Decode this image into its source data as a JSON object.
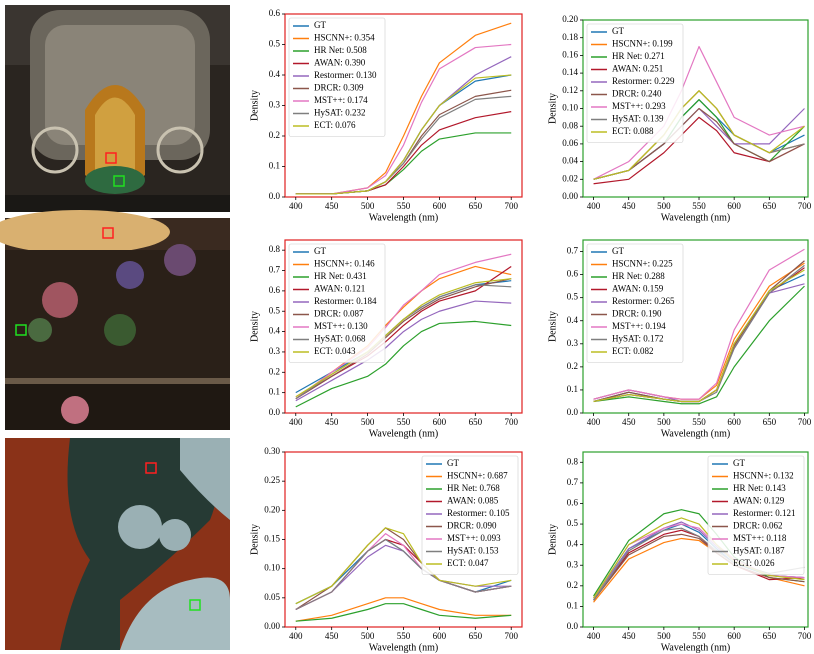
{
  "chart_data": [
    {
      "type": "line",
      "xlabel": "Wavelength (nm)",
      "ylabel": "Density",
      "legend": "upper left",
      "frame_color": "#e02020",
      "x": [
        400,
        450,
        500,
        525,
        550,
        575,
        600,
        650,
        700
      ],
      "xlim": [
        385,
        715
      ],
      "xticks": [
        400,
        450,
        500,
        550,
        600,
        650,
        700
      ],
      "ylim": [
        0,
        0.6
      ],
      "yticks": [
        {
          "value": 0,
          "label": "0.0"
        },
        0.1,
        0.2,
        0.3,
        0.4,
        0.5,
        0.6
      ],
      "series": [
        {
          "name": "GT",
          "color": "#1f77b4",
          "values": [
            0.01,
            0.01,
            0.02,
            0.05,
            0.12,
            0.22,
            0.3,
            0.38,
            0.4
          ]
        },
        {
          "name": "HSCNN+: 0.354",
          "color": "#ff7f0e",
          "values": [
            0.01,
            0.01,
            0.03,
            0.08,
            0.2,
            0.33,
            0.44,
            0.53,
            0.57
          ]
        },
        {
          "name": "HR Net: 0.508",
          "color": "#2ca02c",
          "values": [
            0.01,
            0.01,
            0.02,
            0.04,
            0.09,
            0.15,
            0.19,
            0.21,
            0.21
          ]
        },
        {
          "name": "AWAN: 0.390",
          "color": "#b2182b",
          "values": [
            0.01,
            0.01,
            0.02,
            0.04,
            0.1,
            0.17,
            0.22,
            0.26,
            0.28
          ]
        },
        {
          "name": "Restormer: 0.130",
          "color": "#9467bd",
          "values": [
            0.01,
            0.01,
            0.02,
            0.05,
            0.12,
            0.22,
            0.3,
            0.4,
            0.46
          ]
        },
        {
          "name": "DRCR: 0.309",
          "color": "#8c564b",
          "values": [
            0.01,
            0.01,
            0.02,
            0.05,
            0.11,
            0.2,
            0.27,
            0.33,
            0.35
          ]
        },
        {
          "name": "MST++: 0.174",
          "color": "#e377c2",
          "values": [
            0.01,
            0.01,
            0.03,
            0.07,
            0.17,
            0.31,
            0.42,
            0.49,
            0.5
          ]
        },
        {
          "name": "HySAT: 0.232",
          "color": "#7f7f7f",
          "values": [
            0.01,
            0.01,
            0.02,
            0.05,
            0.11,
            0.19,
            0.26,
            0.32,
            0.33
          ]
        },
        {
          "name": "ECT: 0.076",
          "color": "#bcbd22",
          "values": [
            0.01,
            0.01,
            0.02,
            0.05,
            0.12,
            0.22,
            0.3,
            0.39,
            0.4
          ]
        }
      ]
    },
    {
      "type": "line",
      "xlabel": "Wavelength (nm)",
      "ylabel": "Density",
      "legend": "upper left",
      "frame_color": "#2ca02c",
      "x": [
        400,
        450,
        500,
        525,
        550,
        575,
        600,
        650,
        700
      ],
      "xlim": [
        385,
        705
      ],
      "xticks": [
        400,
        450,
        500,
        550,
        600,
        650,
        700
      ],
      "ylim": [
        0,
        0.2
      ],
      "yticks": [
        {
          "value": 0,
          "label": "0.00"
        },
        0.02,
        0.04,
        0.06,
        0.08,
        {
          "value": 0.1,
          "label": "0.10"
        },
        0.12,
        0.14,
        0.16,
        0.18,
        {
          "value": 0.2,
          "label": "0.20"
        }
      ],
      "series": [
        {
          "name": "GT",
          "color": "#1f77b4",
          "values": [
            0.02,
            0.03,
            0.06,
            0.09,
            0.11,
            0.09,
            0.07,
            0.05,
            0.07
          ]
        },
        {
          "name": "HSCNN+: 0.199",
          "color": "#ff7f0e",
          "values": [
            0.02,
            0.03,
            0.07,
            0.1,
            0.12,
            0.1,
            0.07,
            0.05,
            0.06
          ]
        },
        {
          "name": "HR Net: 0.271",
          "color": "#2ca02c",
          "values": [
            0.02,
            0.03,
            0.06,
            0.09,
            0.11,
            0.09,
            0.06,
            0.04,
            0.08
          ]
        },
        {
          "name": "AWAN: 0.251",
          "color": "#b2182b",
          "values": [
            0.015,
            0.02,
            0.05,
            0.07,
            0.09,
            0.075,
            0.05,
            0.04,
            0.06
          ]
        },
        {
          "name": "Restormer: 0.229",
          "color": "#9467bd",
          "values": [
            0.02,
            0.03,
            0.06,
            0.08,
            0.1,
            0.08,
            0.06,
            0.06,
            0.1
          ]
        },
        {
          "name": "DRCR: 0.240",
          "color": "#8c564b",
          "values": [
            0.02,
            0.03,
            0.06,
            0.08,
            0.1,
            0.085,
            0.06,
            0.04,
            0.06
          ]
        },
        {
          "name": "MST++: 0.293",
          "color": "#e377c2",
          "values": [
            0.02,
            0.04,
            0.08,
            0.12,
            0.17,
            0.13,
            0.09,
            0.07,
            0.08
          ]
        },
        {
          "name": "HySAT: 0.139",
          "color": "#7f7f7f",
          "values": [
            0.02,
            0.03,
            0.07,
            0.1,
            0.12,
            0.1,
            0.07,
            0.05,
            0.06
          ]
        },
        {
          "name": "ECT: 0.088",
          "color": "#bcbd22",
          "values": [
            0.02,
            0.03,
            0.07,
            0.1,
            0.12,
            0.1,
            0.07,
            0.05,
            0.08
          ]
        }
      ]
    },
    {
      "type": "line",
      "xlabel": "Wavelength (nm)",
      "ylabel": "Density",
      "legend": "upper left",
      "frame_color": "#e02020",
      "x": [
        400,
        450,
        500,
        525,
        550,
        575,
        600,
        650,
        700
      ],
      "xlim": [
        385,
        715
      ],
      "xticks": [
        400,
        450,
        500,
        550,
        600,
        650,
        700
      ],
      "ylim": [
        0,
        0.85
      ],
      "yticks": [
        {
          "value": 0,
          "label": "0.0"
        },
        0.1,
        0.2,
        0.3,
        0.4,
        0.5,
        0.6,
        0.7,
        0.8
      ],
      "series": [
        {
          "name": "GT",
          "color": "#1f77b4",
          "values": [
            0.1,
            0.2,
            0.3,
            0.38,
            0.46,
            0.52,
            0.57,
            0.63,
            0.65
          ]
        },
        {
          "name": "HSCNN+: 0.146",
          "color": "#ff7f0e",
          "values": [
            0.07,
            0.2,
            0.33,
            0.43,
            0.52,
            0.6,
            0.66,
            0.72,
            0.68
          ]
        },
        {
          "name": "HR Net: 0.431",
          "color": "#2ca02c",
          "values": [
            0.03,
            0.12,
            0.18,
            0.24,
            0.33,
            0.4,
            0.44,
            0.45,
            0.43
          ]
        },
        {
          "name": "AWAN: 0.121",
          "color": "#b2182b",
          "values": [
            0.07,
            0.18,
            0.28,
            0.35,
            0.43,
            0.5,
            0.55,
            0.6,
            0.72
          ]
        },
        {
          "name": "Restormer: 0.184",
          "color": "#9467bd",
          "values": [
            0.06,
            0.16,
            0.26,
            0.32,
            0.4,
            0.46,
            0.5,
            0.55,
            0.54
          ]
        },
        {
          "name": "DRCR: 0.087",
          "color": "#8c564b",
          "values": [
            0.07,
            0.18,
            0.29,
            0.37,
            0.45,
            0.51,
            0.56,
            0.62,
            0.66
          ]
        },
        {
          "name": "MST++: 0.130",
          "color": "#e377c2",
          "values": [
            0.07,
            0.2,
            0.32,
            0.42,
            0.53,
            0.6,
            0.68,
            0.74,
            0.78
          ]
        },
        {
          "name": "HySAT: 0.068",
          "color": "#7f7f7f",
          "values": [
            0.07,
            0.19,
            0.3,
            0.38,
            0.46,
            0.52,
            0.57,
            0.63,
            0.62
          ]
        },
        {
          "name": "ECT: 0.043",
          "color": "#bcbd22",
          "values": [
            0.08,
            0.19,
            0.3,
            0.38,
            0.46,
            0.53,
            0.58,
            0.64,
            0.66
          ]
        }
      ]
    },
    {
      "type": "line",
      "xlabel": "Wavelength (nm)",
      "ylabel": "Density",
      "legend": "upper left",
      "frame_color": "#2ca02c",
      "x": [
        400,
        450,
        500,
        525,
        550,
        575,
        600,
        650,
        700
      ],
      "xlim": [
        385,
        705
      ],
      "xticks": [
        400,
        450,
        500,
        550,
        600,
        650,
        700
      ],
      "ylim": [
        0,
        0.75
      ],
      "yticks": [
        {
          "value": 0,
          "label": "0.0"
        },
        0.1,
        0.2,
        0.3,
        0.4,
        0.5,
        0.6,
        0.7
      ],
      "series": [
        {
          "name": "GT",
          "color": "#1f77b4",
          "values": [
            0.05,
            0.09,
            0.06,
            0.05,
            0.05,
            0.1,
            0.3,
            0.53,
            0.6
          ]
        },
        {
          "name": "HSCNN+: 0.225",
          "color": "#ff7f0e",
          "values": [
            0.06,
            0.1,
            0.07,
            0.06,
            0.06,
            0.12,
            0.32,
            0.55,
            0.65
          ]
        },
        {
          "name": "HR Net: 0.288",
          "color": "#2ca02c",
          "values": [
            0.05,
            0.07,
            0.05,
            0.04,
            0.04,
            0.07,
            0.2,
            0.4,
            0.55
          ]
        },
        {
          "name": "AWAN: 0.159",
          "color": "#b2182b",
          "values": [
            0.05,
            0.08,
            0.06,
            0.05,
            0.05,
            0.1,
            0.3,
            0.52,
            0.63
          ]
        },
        {
          "name": "Restormer: 0.265",
          "color": "#9467bd",
          "values": [
            0.06,
            0.1,
            0.07,
            0.05,
            0.05,
            0.1,
            0.28,
            0.52,
            0.56
          ]
        },
        {
          "name": "DRCR: 0.190",
          "color": "#8c564b",
          "values": [
            0.05,
            0.09,
            0.06,
            0.05,
            0.05,
            0.1,
            0.29,
            0.53,
            0.66
          ]
        },
        {
          "name": "MST++: 0.194",
          "color": "#e377c2",
          "values": [
            0.06,
            0.1,
            0.07,
            0.06,
            0.06,
            0.13,
            0.36,
            0.62,
            0.71
          ]
        },
        {
          "name": "HySAT: 0.172",
          "color": "#7f7f7f",
          "values": [
            0.05,
            0.08,
            0.06,
            0.05,
            0.05,
            0.09,
            0.28,
            0.52,
            0.64
          ]
        },
        {
          "name": "ECT: 0.082",
          "color": "#bcbd22",
          "values": [
            0.05,
            0.08,
            0.06,
            0.05,
            0.05,
            0.1,
            0.3,
            0.53,
            0.62
          ]
        }
      ]
    },
    {
      "type": "line",
      "xlabel": "Wavelength (nm)",
      "ylabel": "Density",
      "legend": "upper right",
      "frame_color": "#e02020",
      "x": [
        400,
        450,
        500,
        525,
        550,
        575,
        600,
        650,
        700
      ],
      "xlim": [
        385,
        715
      ],
      "xticks": [
        400,
        450,
        500,
        550,
        600,
        650,
        700
      ],
      "ylim": [
        0,
        0.3
      ],
      "yticks": [
        {
          "value": 0,
          "label": "0.00"
        },
        0.05,
        {
          "value": 0.1,
          "label": "0.10"
        },
        0.15,
        {
          "value": 0.2,
          "label": "0.20"
        },
        0.25,
        {
          "value": 0.3,
          "label": "0.30"
        }
      ],
      "series": [
        {
          "name": "GT",
          "color": "#1f77b4",
          "values": [
            0.04,
            0.07,
            0.13,
            0.15,
            0.13,
            0.1,
            0.08,
            0.06,
            0.08
          ]
        },
        {
          "name": "HSCNN+: 0.687",
          "color": "#ff7f0e",
          "values": [
            0.01,
            0.02,
            0.04,
            0.05,
            0.05,
            0.04,
            0.03,
            0.02,
            0.02
          ]
        },
        {
          "name": "HR Net: 0.768",
          "color": "#2ca02c",
          "values": [
            0.01,
            0.015,
            0.03,
            0.04,
            0.04,
            0.03,
            0.02,
            0.015,
            0.02
          ]
        },
        {
          "name": "AWAN: 0.085",
          "color": "#b2182b",
          "values": [
            0.03,
            0.06,
            0.13,
            0.15,
            0.14,
            0.11,
            0.08,
            0.06,
            0.07
          ]
        },
        {
          "name": "Restormer: 0.105",
          "color": "#9467bd",
          "values": [
            0.03,
            0.06,
            0.12,
            0.14,
            0.13,
            0.1,
            0.08,
            0.07,
            0.07
          ]
        },
        {
          "name": "DRCR: 0.090",
          "color": "#8c564b",
          "values": [
            0.03,
            0.07,
            0.14,
            0.17,
            0.15,
            0.11,
            0.08,
            0.06,
            0.07
          ]
        },
        {
          "name": "MST++: 0.093",
          "color": "#e377c2",
          "values": [
            0.03,
            0.06,
            0.13,
            0.16,
            0.14,
            0.1,
            0.08,
            0.06,
            0.07
          ]
        },
        {
          "name": "HySAT: 0.153",
          "color": "#7f7f7f",
          "values": [
            0.03,
            0.06,
            0.13,
            0.15,
            0.13,
            0.1,
            0.08,
            0.06,
            0.07
          ]
        },
        {
          "name": "ECT: 0.047",
          "color": "#bcbd22",
          "values": [
            0.04,
            0.07,
            0.14,
            0.17,
            0.16,
            0.11,
            0.08,
            0.07,
            0.08
          ]
        }
      ]
    },
    {
      "type": "line",
      "xlabel": "Wavelength (nm)",
      "ylabel": "Density",
      "legend": "upper right",
      "frame_color": "#2ca02c",
      "x": [
        400,
        450,
        500,
        525,
        550,
        575,
        600,
        650,
        700
      ],
      "xlim": [
        385,
        705
      ],
      "xticks": [
        400,
        450,
        500,
        550,
        600,
        650,
        700
      ],
      "ylim": [
        0,
        0.85
      ],
      "yticks": [
        {
          "value": 0,
          "label": "0.0"
        },
        0.1,
        0.2,
        0.3,
        0.4,
        0.5,
        0.6,
        0.7,
        0.8
      ],
      "series": [
        {
          "name": "GT",
          "color": "#1f77b4",
          "values": [
            0.14,
            0.38,
            0.47,
            0.5,
            0.46,
            0.38,
            0.31,
            0.25,
            0.24
          ]
        },
        {
          "name": "HSCNN+: 0.132",
          "color": "#ff7f0e",
          "values": [
            0.12,
            0.33,
            0.41,
            0.43,
            0.42,
            0.36,
            0.3,
            0.24,
            0.2
          ]
        },
        {
          "name": "HR Net: 0.143",
          "color": "#2ca02c",
          "values": [
            0.15,
            0.42,
            0.55,
            0.57,
            0.55,
            0.45,
            0.34,
            0.24,
            0.22
          ]
        },
        {
          "name": "AWAN: 0.129",
          "color": "#b2182b",
          "values": [
            0.13,
            0.36,
            0.45,
            0.47,
            0.44,
            0.36,
            0.3,
            0.23,
            0.24
          ]
        },
        {
          "name": "Restormer: 0.121",
          "color": "#9467bd",
          "values": [
            0.14,
            0.38,
            0.48,
            0.51,
            0.47,
            0.39,
            0.32,
            0.25,
            0.24
          ]
        },
        {
          "name": "DRCR: 0.062",
          "color": "#8c564b",
          "values": [
            0.13,
            0.35,
            0.44,
            0.45,
            0.43,
            0.36,
            0.3,
            0.24,
            0.22
          ]
        },
        {
          "name": "MST++: 0.118",
          "color": "#e377c2",
          "values": [
            0.14,
            0.4,
            0.48,
            0.5,
            0.48,
            0.4,
            0.33,
            0.25,
            0.24
          ]
        },
        {
          "name": "HySAT: 0.187",
          "color": "#7f7f7f",
          "values": [
            0.13,
            0.37,
            0.47,
            0.48,
            0.44,
            0.37,
            0.31,
            0.26,
            0.29
          ]
        },
        {
          "name": "ECT: 0.026",
          "color": "#bcbd22",
          "values": [
            0.14,
            0.4,
            0.5,
            0.53,
            0.5,
            0.4,
            0.32,
            0.25,
            0.23
          ]
        }
      ]
    }
  ]
}
